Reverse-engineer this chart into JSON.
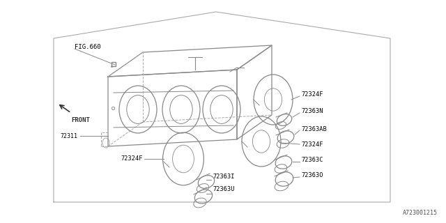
{
  "bg_color": "#ffffff",
  "line_color": "#888888",
  "text_color": "#000000",
  "title_text": "A723001215",
  "fig_label": "FIG.660",
  "front_label": "FRONT"
}
